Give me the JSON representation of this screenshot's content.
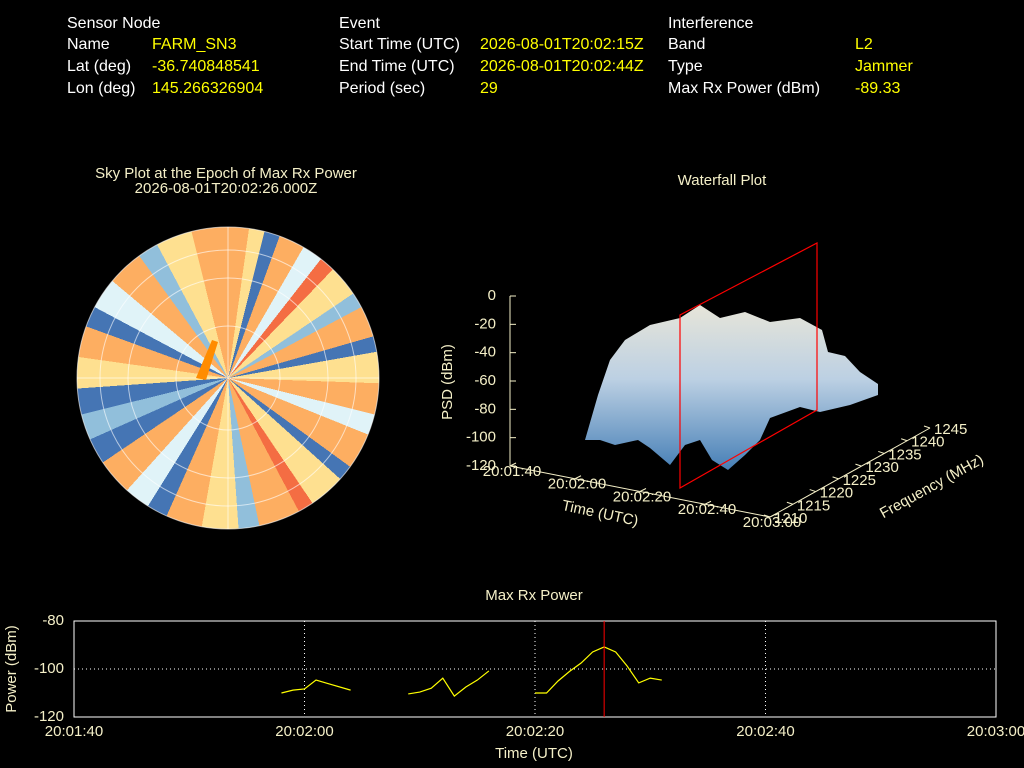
{
  "header": {
    "columns": [
      {
        "title": "Sensor Node",
        "rows": [
          [
            "Name",
            "FARM_SN3"
          ],
          [
            "Lat (deg)",
            -36.740848541
          ],
          [
            "Lon (deg)",
            145.266326904
          ]
        ]
      },
      {
        "title": "Event",
        "rows": [
          [
            "Start Time (UTC)",
            "2026-08-01T20:02:15Z"
          ],
          [
            "End Time (UTC)",
            "2026-08-01T20:02:44Z"
          ],
          [
            "Period (sec)",
            29
          ]
        ]
      },
      {
        "title": "Interference",
        "rows": [
          [
            "Band",
            "L2"
          ],
          [
            "Type",
            "Jammer"
          ],
          [
            "Max Rx Power (dBm)",
            -89.33
          ]
        ]
      }
    ]
  },
  "chart_data": [
    {
      "type": "polar_heatmap",
      "title": "Sky Plot at the Epoch of Max Rx Power",
      "subtitle": "2026-08-01T20:02:26.000Z"
    },
    {
      "type": "surface",
      "title": "Waterfall Plot",
      "zlabel": "PSD (dBm)",
      "xlabel": "Time (UTC)",
      "ylabel": "Frequency (MHz)",
      "zlim": [
        -120,
        0
      ],
      "zticks": [
        0,
        -20,
        -40,
        -60,
        -80,
        -100,
        -120
      ],
      "xlim": [
        "20:01:40",
        "20:03:00"
      ],
      "xticks": [
        "20:01:40",
        "20:02:00",
        "20:02:20",
        "20:02:40",
        "20:03:00"
      ],
      "ylim": [
        1210,
        1245
      ],
      "yticks": [
        1210,
        1215,
        1220,
        1225,
        1230,
        1235,
        1240,
        1245
      ]
    },
    {
      "type": "line",
      "title": "Max Rx Power",
      "xlabel": "Time (UTC)",
      "ylabel": "Power (dBm)",
      "xlim": [
        "20:01:40",
        "20:03:00"
      ],
      "xticks": [
        "20:01:40",
        "20:02:00",
        "20:02:20",
        "20:02:40",
        "20:03:00"
      ],
      "ylim": [
        -120,
        -80
      ],
      "yticks": [
        -80,
        -100,
        -120
      ],
      "grid": true,
      "marker_x": "20:02:26",
      "marker_color": "#ff0000",
      "x": [
        "20:01:58",
        "20:01:59",
        "20:02:00",
        "20:02:01",
        "20:02:02",
        "20:02:04",
        "20:02:06",
        "20:02:09",
        "20:02:10",
        "20:02:11",
        "20:02:12",
        "20:02:13",
        "20:02:14",
        "20:02:15",
        "20:02:16",
        "20:02:18",
        "20:02:20",
        "20:02:21",
        "20:02:22",
        "20:02:23",
        "20:02:24",
        "20:02:25",
        "20:02:26",
        "20:02:27",
        "20:02:28",
        "20:02:29",
        "20:02:30",
        "20:02:31"
      ],
      "series": [
        {
          "name": "Max Rx Power",
          "color": "#ffff00",
          "values": [
            -110,
            -108.8,
            -108.3,
            -104.6,
            -106,
            -108.8,
            null,
            -110.4,
            -109.6,
            -108,
            -103.8,
            -111.3,
            -107.5,
            -104.6,
            -100.8,
            null,
            -110,
            -110,
            -105,
            -101,
            -97.5,
            -92.9,
            -90.8,
            -92.9,
            -98.8,
            -105.8,
            -103.8,
            -104.6
          ]
        }
      ]
    }
  ]
}
